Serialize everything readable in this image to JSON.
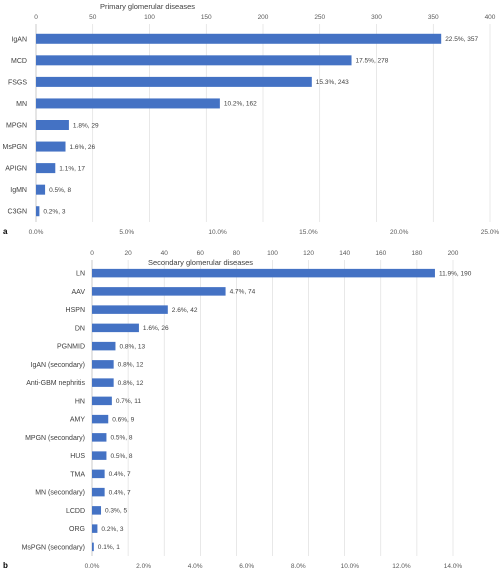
{
  "chart_data": [
    {
      "type": "bar",
      "orientation": "horizontal",
      "panel_label": "a",
      "title": "Primary glomerular diseases",
      "categories": [
        "IgAN",
        "MCD",
        "FSGS",
        "MN",
        "MPGN",
        "MsPGN",
        "APIGN",
        "IgMN",
        "C3GN"
      ],
      "values": [
        357,
        278,
        243,
        162,
        29,
        26,
        17,
        8,
        3
      ],
      "data_labels": [
        "22.5%, 357",
        "17.5%, 278",
        "15.3%, 243",
        "10.2%, 162",
        "1.8%, 29",
        "1.6%, 26",
        "1.1%, 17",
        "0.5%, 8",
        "0.2%, 3"
      ],
      "top_axis": {
        "min": 0,
        "max": 400,
        "ticks": [
          "0",
          "50",
          "100",
          "150",
          "200",
          "250",
          "300",
          "350",
          "400"
        ]
      },
      "bottom_axis": {
        "min": 0,
        "max": 25,
        "ticks": [
          "0.0%",
          "5.0%",
          "10.0%",
          "15.0%",
          "20.0%",
          "25.0%"
        ]
      },
      "grid": true,
      "color": "#4472c4"
    },
    {
      "type": "bar",
      "orientation": "horizontal",
      "panel_label": "b",
      "title": "Secondary glomerular diseases",
      "categories": [
        "LN",
        "AAV",
        "HSPN",
        "DN",
        "PGNMID",
        "IgAN (secondary)",
        "Anti-GBM nephritis",
        "HN",
        "AMY",
        "MPGN (secondary)",
        "HUS",
        "TMA",
        "MN (secondary)",
        "LCDD",
        "ORG",
        "MsPGN (secondary)"
      ],
      "values": [
        190,
        74,
        42,
        26,
        13,
        12,
        12,
        11,
        9,
        8,
        8,
        7,
        7,
        5,
        3,
        1
      ],
      "data_labels": [
        "11.9%, 190",
        "4.7%, 74",
        "2.6%, 42",
        "1.6%, 26",
        "0.8%, 13",
        "0.8%, 12",
        "0.8%, 12",
        "0.7%, 11",
        "0.6%, 9",
        "0.5%, 8",
        "0.5%, 8",
        "0.4%, 7",
        "0.4%, 7",
        "0.3%, 5",
        "0.2%, 3",
        "0.1%, 1"
      ],
      "top_axis": {
        "min": 0,
        "max": 200,
        "ticks": [
          "0",
          "20",
          "40",
          "60",
          "80",
          "100",
          "120",
          "140",
          "160",
          "180",
          "200"
        ]
      },
      "bottom_axis": {
        "min": 0,
        "max": 14,
        "ticks": [
          "0.0%",
          "2.0%",
          "4.0%",
          "6.0%",
          "8.0%",
          "10.0%",
          "12.0%",
          "14.0%"
        ]
      },
      "grid": true,
      "color": "#4472c4"
    }
  ]
}
